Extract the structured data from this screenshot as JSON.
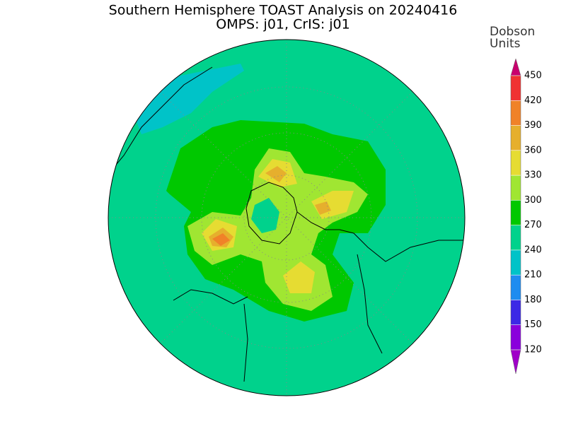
{
  "title": "Southern Hemisphere TOAST Analysis on 20240416",
  "subtitle": "OMPS: j01, CrIS: j01",
  "colorbar": {
    "label": [
      "Dobson",
      "Units"
    ],
    "range": [
      120,
      450
    ],
    "ticks": [
      120,
      150,
      180,
      210,
      240,
      270,
      300,
      330,
      360,
      390,
      420,
      450
    ],
    "colors": [
      "#8a00dc",
      "#3c28e6",
      "#1e8cf0",
      "#00c3c8",
      "#00d28c",
      "#00c800",
      "#a0e632",
      "#e6dc32",
      "#e6af2d",
      "#f08228",
      "#f03232"
    ],
    "under_color": "#a000c8",
    "over_color": "#c8006e"
  }
}
